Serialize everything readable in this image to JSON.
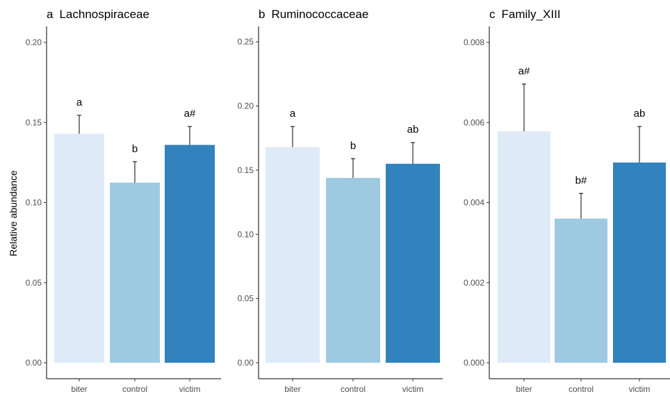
{
  "ylabel": "Relative abundance",
  "colors": {
    "biter": "#deebf7",
    "control": "#9ecae1",
    "victim": "#3182bd"
  },
  "chart_data": [
    {
      "type": "bar",
      "panel": "a",
      "title": "Lachnospiraceae",
      "categories": [
        "biter",
        "control",
        "victim"
      ],
      "values": [
        0.143,
        0.1125,
        0.136
      ],
      "error_upper": [
        0.1545,
        0.1255,
        0.1475
      ],
      "labels": [
        "a",
        "b",
        "a#"
      ],
      "ylim": [
        0,
        0.21
      ],
      "yticks": [
        0.0,
        0.05,
        0.1,
        0.15,
        0.2
      ],
      "ytick_labels": [
        "0.00",
        "0.05",
        "0.10",
        "0.15",
        "0.20"
      ]
    },
    {
      "type": "bar",
      "panel": "b",
      "title": "Ruminococcaceae",
      "categories": [
        "biter",
        "control",
        "victim"
      ],
      "values": [
        0.168,
        0.144,
        0.155
      ],
      "error_upper": [
        0.184,
        0.159,
        0.1715
      ],
      "labels": [
        "a",
        "b",
        "ab"
      ],
      "ylim": [
        0,
        0.262
      ],
      "yticks": [
        0.0,
        0.05,
        0.1,
        0.15,
        0.2,
        0.25
      ],
      "ytick_labels": [
        "0.00",
        "0.05",
        "0.10",
        "0.15",
        "0.20",
        "0.25"
      ]
    },
    {
      "type": "bar",
      "panel": "c",
      "title": "Family_XIII",
      "categories": [
        "biter",
        "control",
        "victim"
      ],
      "values": [
        0.00578,
        0.0036,
        0.005
      ],
      "error_upper": [
        0.00696,
        0.00423,
        0.0059
      ],
      "labels": [
        "a#",
        "b#",
        "ab"
      ],
      "ylim": [
        0,
        0.0084
      ],
      "yticks": [
        0.0,
        0.002,
        0.004,
        0.006,
        0.008
      ],
      "ytick_labels": [
        "0.000",
        "0.002",
        "0.004",
        "0.006",
        "0.008"
      ]
    }
  ]
}
